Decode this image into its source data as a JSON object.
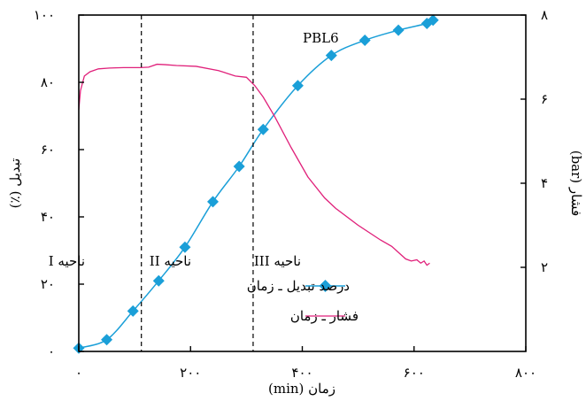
{
  "chart_data": {
    "type": "line",
    "title": "",
    "annotation": "PBL6",
    "xlabel": "زمان (min)",
    "ylabel_left": "تبدیل (٪)",
    "ylabel_right": "فشار (bar)",
    "xlim": [
      0,
      800
    ],
    "ylim_left": [
      0,
      100
    ],
    "ylim_right": [
      0,
      8
    ],
    "x_ticks": [
      0,
      200,
      400,
      600,
      800
    ],
    "x_tick_labels": [
      "۰",
      "۲۰۰",
      "۴۰۰",
      "۶۰۰",
      "۸۰۰"
    ],
    "y_left_ticks": [
      0,
      20,
      40,
      60,
      80,
      100
    ],
    "y_left_tick_labels": [
      "۰",
      "۲۰",
      "۴۰",
      "۶۰",
      "۸۰",
      "۱۰۰"
    ],
    "y_right_ticks": [
      2,
      4,
      6,
      8
    ],
    "y_right_tick_labels": [
      "۲",
      "۴",
      "۶",
      "۸"
    ],
    "grid": false,
    "legend_position": "bottom-right",
    "region_dividers": [
      112,
      312
    ],
    "regions": [
      "ناحیه I",
      "ناحیه II",
      "ناحیه III"
    ],
    "series": [
      {
        "name": "درصد تبدیل ـ زمان",
        "axis": "left",
        "color": "#1a9fd8",
        "marker": "diamond",
        "x": [
          0,
          50,
          97,
          143,
          190,
          240,
          287,
          330,
          392,
          452,
          512,
          572,
          623,
          634
        ],
        "y": [
          1,
          3.5,
          12,
          21,
          31,
          44.5,
          55,
          66,
          79,
          88,
          92.5,
          95.5,
          97.5,
          98.5
        ]
      },
      {
        "name": "فشار ـ زمان",
        "axis": "right",
        "color": "#e0207a",
        "marker": "none",
        "x": [
          0,
          3,
          10,
          20,
          35,
          55,
          80,
          110,
          125,
          140,
          155,
          175,
          210,
          250,
          280,
          300,
          315,
          330,
          350,
          380,
          410,
          440,
          460,
          500,
          540,
          560,
          585,
          595,
          605,
          612,
          618,
          623,
          628
        ],
        "y": [
          5.75,
          6.2,
          6.55,
          6.65,
          6.72,
          6.74,
          6.75,
          6.75,
          6.76,
          6.83,
          6.82,
          6.8,
          6.78,
          6.68,
          6.55,
          6.52,
          6.32,
          6.05,
          5.6,
          4.85,
          4.15,
          3.65,
          3.4,
          3.0,
          2.65,
          2.5,
          2.2,
          2.15,
          2.18,
          2.1,
          2.15,
          2.05,
          2.1
        ]
      }
    ]
  }
}
